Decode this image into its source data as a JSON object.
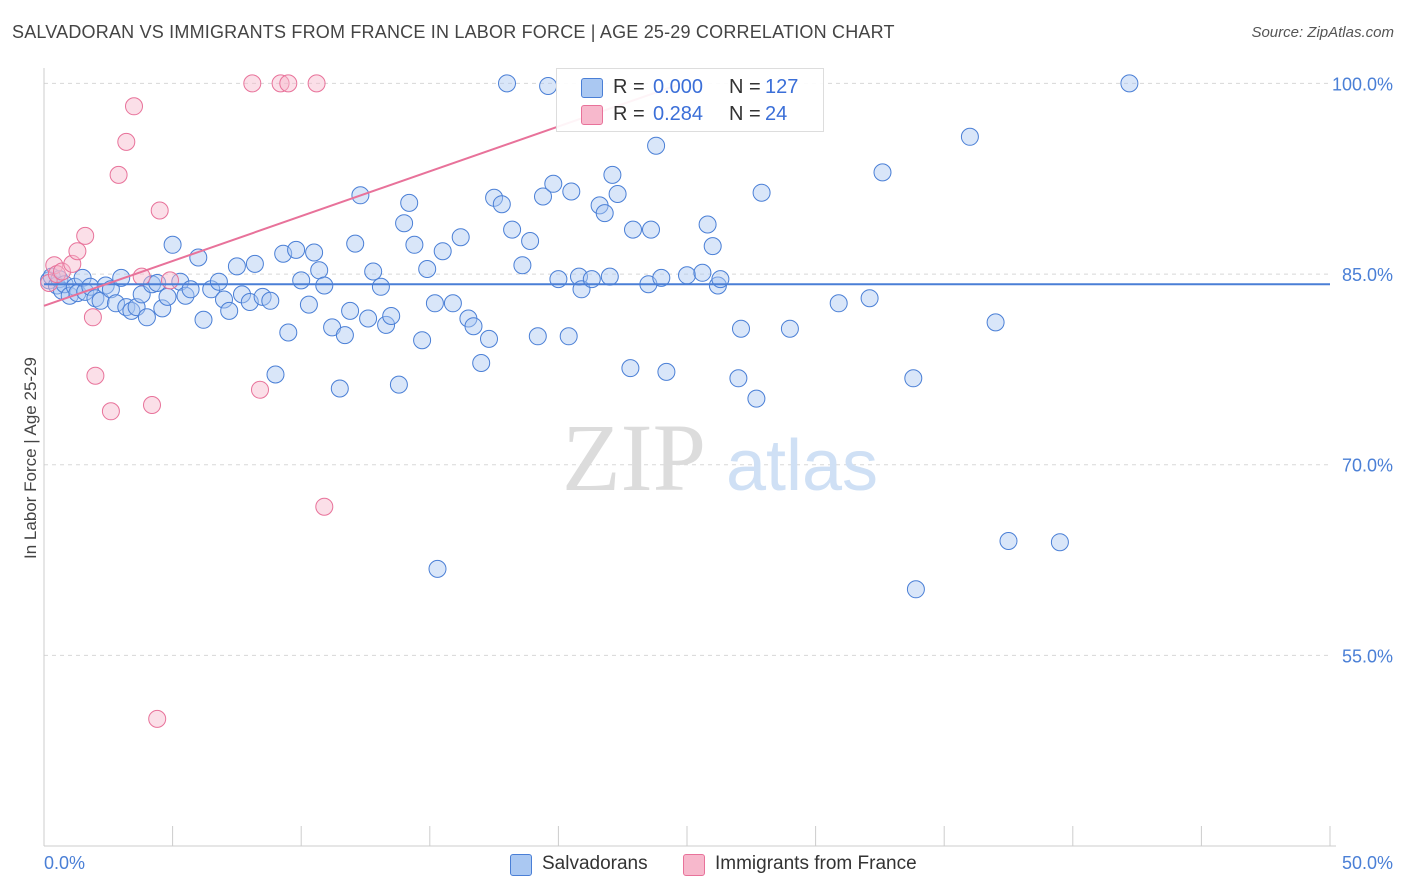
{
  "header": {
    "title": "SALVADORAN VS IMMIGRANTS FROM FRANCE IN LABOR FORCE | AGE 25-29 CORRELATION CHART",
    "source": "Source: ZipAtlas.com"
  },
  "colors": {
    "blue": "#4a7fd6",
    "blue_fill": "#aac8f2",
    "pink": "#e8729a",
    "pink_fill": "#f7b8cc",
    "grid": "#d8d8d8"
  },
  "legend_top": {
    "rows": [
      {
        "r_label": "R =",
        "r_value": "0.000",
        "n_label": "N =",
        "n_value": "127"
      },
      {
        "r_label": "R =",
        "r_value": "0.284",
        "n_label": "N =",
        "n_value": "24"
      }
    ]
  },
  "legend_bottom": {
    "items": [
      {
        "label": "Salvadorans"
      },
      {
        "label": "Immigrants from France"
      }
    ]
  },
  "watermark": {
    "part1": "ZIP",
    "part2": "atlas"
  },
  "chart_data": {
    "type": "scatter",
    "title": "SALVADORAN VS IMMIGRANTS FROM FRANCE IN LABOR FORCE | AGE 25-29 CORRELATION CHART",
    "xlabel": "",
    "ylabel": "In Labor Force | Age 25-29",
    "xlim": [
      0,
      50
    ],
    "ylim": [
      40,
      102
    ],
    "x_tick_labels": [
      {
        "value": 0,
        "label": "0.0%"
      },
      {
        "value": 50,
        "label": "50.0%"
      }
    ],
    "y_tick_labels": [
      {
        "value": 100,
        "label": "100.0%"
      },
      {
        "value": 85,
        "label": "85.0%"
      },
      {
        "value": 70,
        "label": "70.0%"
      },
      {
        "value": 55,
        "label": "55.0%"
      }
    ],
    "series": [
      {
        "name": "Salvadorans",
        "color": "#4a7fd6",
        "r": 0.0,
        "n": 127,
        "trend": {
          "x": [
            0,
            50
          ],
          "y": [
            84.2,
            84.2
          ]
        },
        "points": [
          [
            0.2,
            84.5
          ],
          [
            0.3,
            84.8
          ],
          [
            0.5,
            84.1
          ],
          [
            0.6,
            84.6
          ],
          [
            0.7,
            83.7
          ],
          [
            0.8,
            84.2
          ],
          [
            1.0,
            83.3
          ],
          [
            1.2,
            84.0
          ],
          [
            1.3,
            83.5
          ],
          [
            1.5,
            84.7
          ],
          [
            1.6,
            83.6
          ],
          [
            1.8,
            84.0
          ],
          [
            2.0,
            83.1
          ],
          [
            2.2,
            82.9
          ],
          [
            2.4,
            84.1
          ],
          [
            2.6,
            83.8
          ],
          [
            2.8,
            82.7
          ],
          [
            3.0,
            84.7
          ],
          [
            3.2,
            82.4
          ],
          [
            3.4,
            82.1
          ],
          [
            3.6,
            82.4
          ],
          [
            3.8,
            83.4
          ],
          [
            4.0,
            81.6
          ],
          [
            4.2,
            84.2
          ],
          [
            4.4,
            84.3
          ],
          [
            4.6,
            82.3
          ],
          [
            4.8,
            83.2
          ],
          [
            5.0,
            87.3
          ],
          [
            5.3,
            84.4
          ],
          [
            5.5,
            83.3
          ],
          [
            5.7,
            83.8
          ],
          [
            6.0,
            86.3
          ],
          [
            6.2,
            81.4
          ],
          [
            6.5,
            83.8
          ],
          [
            6.8,
            84.4
          ],
          [
            7.0,
            83.0
          ],
          [
            7.2,
            82.1
          ],
          [
            7.5,
            85.6
          ],
          [
            7.7,
            83.4
          ],
          [
            8.0,
            82.8
          ],
          [
            8.2,
            85.8
          ],
          [
            8.5,
            83.2
          ],
          [
            8.8,
            82.9
          ],
          [
            9.0,
            77.1
          ],
          [
            9.3,
            86.6
          ],
          [
            9.5,
            80.4
          ],
          [
            9.8,
            86.9
          ],
          [
            10.0,
            84.5
          ],
          [
            10.3,
            82.6
          ],
          [
            10.5,
            86.7
          ],
          [
            10.7,
            85.3
          ],
          [
            10.9,
            84.1
          ],
          [
            11.2,
            80.8
          ],
          [
            11.5,
            76.0
          ],
          [
            11.7,
            80.2
          ],
          [
            11.9,
            82.1
          ],
          [
            12.1,
            87.4
          ],
          [
            12.3,
            91.2
          ],
          [
            12.6,
            81.5
          ],
          [
            12.8,
            85.2
          ],
          [
            13.1,
            84.0
          ],
          [
            13.3,
            81.0
          ],
          [
            13.5,
            81.7
          ],
          [
            13.8,
            76.3
          ],
          [
            14.0,
            89.0
          ],
          [
            14.2,
            90.6
          ],
          [
            14.4,
            87.3
          ],
          [
            14.7,
            79.8
          ],
          [
            14.9,
            85.4
          ],
          [
            15.2,
            82.7
          ],
          [
            15.5,
            86.8
          ],
          [
            15.9,
            82.7
          ],
          [
            16.2,
            87.9
          ],
          [
            16.5,
            81.5
          ],
          [
            16.7,
            80.9
          ],
          [
            17.0,
            78.0
          ],
          [
            17.3,
            79.9
          ],
          [
            17.5,
            91.0
          ],
          [
            17.8,
            90.5
          ],
          [
            18.2,
            88.5
          ],
          [
            18.6,
            85.7
          ],
          [
            18.9,
            87.6
          ],
          [
            19.2,
            80.1
          ],
          [
            19.4,
            91.1
          ],
          [
            19.8,
            92.1
          ],
          [
            20.0,
            84.6
          ],
          [
            20.4,
            80.1
          ],
          [
            20.5,
            91.5
          ],
          [
            20.8,
            84.8
          ],
          [
            20.9,
            83.8
          ],
          [
            21.3,
            84.6
          ],
          [
            21.6,
            90.4
          ],
          [
            21.8,
            89.8
          ],
          [
            22.0,
            84.8
          ],
          [
            22.1,
            92.8
          ],
          [
            22.3,
            91.3
          ],
          [
            22.8,
            77.6
          ],
          [
            22.9,
            88.5
          ],
          [
            23.5,
            84.2
          ],
          [
            23.6,
            88.5
          ],
          [
            23.8,
            95.1
          ],
          [
            24.0,
            84.7
          ],
          [
            24.2,
            77.3
          ],
          [
            25.0,
            84.9
          ],
          [
            25.6,
            85.1
          ],
          [
            25.8,
            88.9
          ],
          [
            26.0,
            87.2
          ],
          [
            26.2,
            84.1
          ],
          [
            26.3,
            84.6
          ],
          [
            27.0,
            76.8
          ],
          [
            27.1,
            80.7
          ],
          [
            27.7,
            75.2
          ],
          [
            27.9,
            91.4
          ],
          [
            29.0,
            80.7
          ],
          [
            30.9,
            82.7
          ],
          [
            32.1,
            83.1
          ],
          [
            32.6,
            93.0
          ],
          [
            33.8,
            76.8
          ],
          [
            36.0,
            95.8
          ],
          [
            37.0,
            81.2
          ],
          [
            37.5,
            64.0
          ],
          [
            39.5,
            63.9
          ],
          [
            33.9,
            60.2
          ],
          [
            15.3,
            61.8
          ],
          [
            18.0,
            100.0
          ],
          [
            19.6,
            99.8
          ],
          [
            42.2,
            100.0
          ]
        ]
      },
      {
        "name": "Immigrants from France",
        "color": "#e8729a",
        "r": 0.284,
        "n": 24,
        "trend": {
          "x": [
            0,
            24.8
          ],
          "y": [
            82.5,
            100.0
          ]
        },
        "points": [
          [
            0.2,
            84.3
          ],
          [
            0.4,
            85.7
          ],
          [
            0.5,
            85.0
          ],
          [
            0.7,
            85.2
          ],
          [
            1.1,
            85.8
          ],
          [
            1.3,
            86.8
          ],
          [
            1.6,
            88.0
          ],
          [
            1.9,
            81.6
          ],
          [
            2.0,
            77.0
          ],
          [
            2.6,
            74.2
          ],
          [
            2.9,
            92.8
          ],
          [
            3.2,
            95.4
          ],
          [
            3.5,
            98.2
          ],
          [
            3.8,
            84.8
          ],
          [
            4.2,
            74.7
          ],
          [
            4.5,
            90.0
          ],
          [
            4.9,
            84.5
          ],
          [
            8.1,
            100.0
          ],
          [
            8.4,
            75.9
          ],
          [
            9.2,
            100.0
          ],
          [
            9.5,
            100.0
          ],
          [
            10.6,
            100.0
          ],
          [
            10.9,
            66.7
          ],
          [
            4.4,
            50.0
          ]
        ]
      }
    ]
  }
}
